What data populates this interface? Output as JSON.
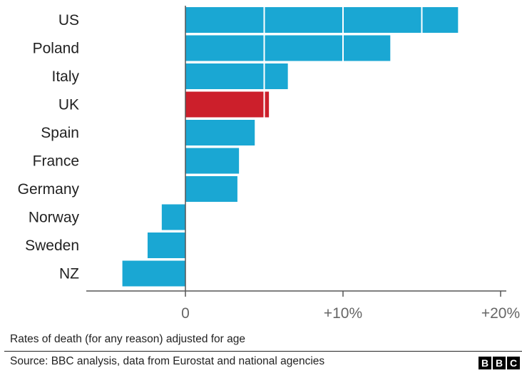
{
  "chart_data": {
    "type": "bar",
    "orientation": "horizontal",
    "categories": [
      "US",
      "Poland",
      "Italy",
      "UK",
      "Spain",
      "France",
      "Germany",
      "Norway",
      "Sweden",
      "NZ"
    ],
    "values": [
      17.3,
      13.0,
      6.5,
      5.3,
      4.4,
      3.4,
      3.3,
      -1.5,
      -2.4,
      -4.0
    ],
    "highlight_category": "UK",
    "xlim": [
      -6.2,
      21.0
    ],
    "xticks": [
      0,
      10,
      20
    ],
    "xtick_labels": [
      "0",
      "+10%",
      "+20%"
    ],
    "grid": "white lines at 5% intervals over bars",
    "colors": {
      "bar": "#1aa7d3",
      "highlight": "#cc1f2b",
      "axis": "#555555",
      "tick_text": "#666666"
    },
    "note": "Rates of death (for any reason) adjusted for age",
    "source": "Source: BBC analysis, data from Eurostat and national agencies"
  },
  "logo": {
    "letters": [
      "B",
      "B",
      "C"
    ]
  }
}
